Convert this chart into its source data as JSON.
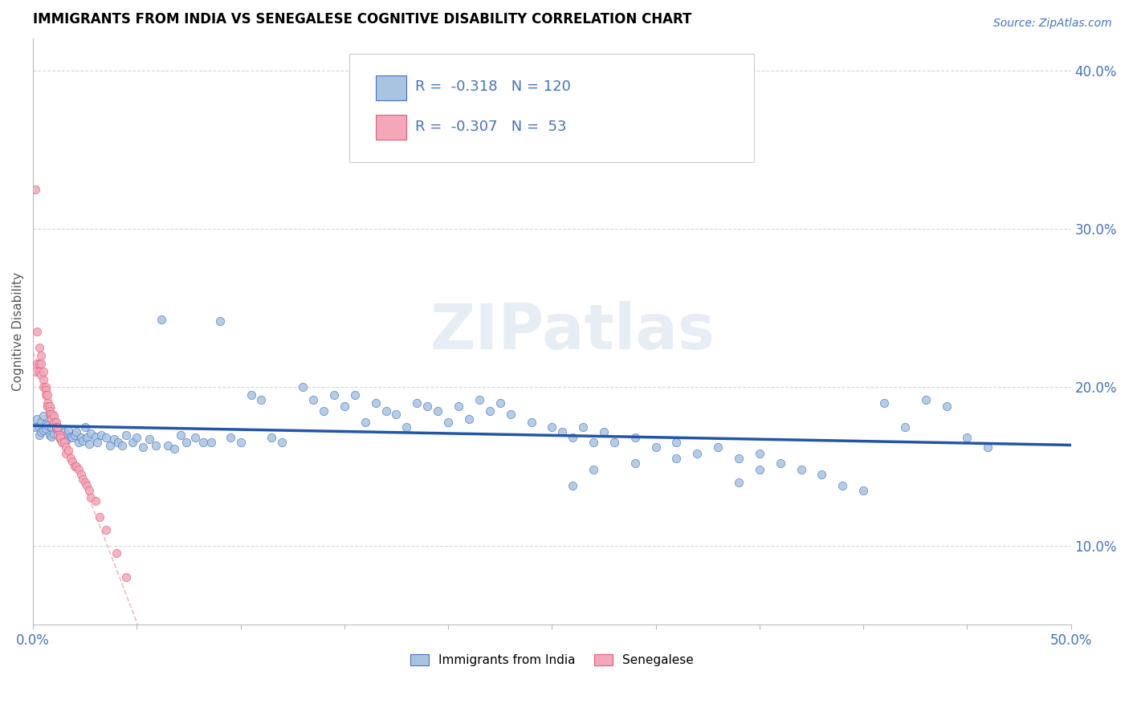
{
  "title": "IMMIGRANTS FROM INDIA VS SENEGALESE COGNITIVE DISABILITY CORRELATION CHART",
  "source": "Source: ZipAtlas.com",
  "ylabel": "Cognitive Disability",
  "xlim": [
    0.0,
    0.5
  ],
  "ylim": [
    0.05,
    0.42
  ],
  "xticks": [
    0.0,
    0.05,
    0.1,
    0.15,
    0.2,
    0.25,
    0.3,
    0.35,
    0.4,
    0.45,
    0.5
  ],
  "ytick_positions": [
    0.1,
    0.2,
    0.3,
    0.4
  ],
  "ytick_labels": [
    "10.0%",
    "20.0%",
    "30.0%",
    "40.0%"
  ],
  "india_color": "#a8c4e0",
  "india_edge_color": "#4472c4",
  "senegal_color": "#f4a7b9",
  "senegal_edge_color": "#e05c7a",
  "trend_india_color": "#2255aa",
  "trend_senegal_color": "#e8a0b0",
  "R_india": -0.318,
  "N_india": 120,
  "R_senegal": -0.307,
  "N_senegal": 53,
  "watermark": "ZIPatlas",
  "india_x": [
    0.001,
    0.002,
    0.003,
    0.003,
    0.004,
    0.004,
    0.005,
    0.005,
    0.006,
    0.006,
    0.007,
    0.007,
    0.008,
    0.008,
    0.009,
    0.009,
    0.01,
    0.01,
    0.011,
    0.012,
    0.013,
    0.013,
    0.014,
    0.015,
    0.016,
    0.016,
    0.017,
    0.018,
    0.019,
    0.02,
    0.021,
    0.022,
    0.023,
    0.024,
    0.025,
    0.026,
    0.027,
    0.028,
    0.03,
    0.031,
    0.033,
    0.035,
    0.037,
    0.039,
    0.041,
    0.043,
    0.045,
    0.048,
    0.05,
    0.053,
    0.056,
    0.059,
    0.062,
    0.065,
    0.068,
    0.071,
    0.074,
    0.078,
    0.082,
    0.086,
    0.09,
    0.095,
    0.1,
    0.105,
    0.11,
    0.115,
    0.12,
    0.13,
    0.135,
    0.14,
    0.145,
    0.15,
    0.155,
    0.16,
    0.165,
    0.17,
    0.175,
    0.18,
    0.185,
    0.19,
    0.195,
    0.2,
    0.205,
    0.21,
    0.215,
    0.22,
    0.225,
    0.23,
    0.24,
    0.25,
    0.255,
    0.26,
    0.265,
    0.27,
    0.275,
    0.28,
    0.29,
    0.3,
    0.31,
    0.32,
    0.33,
    0.34,
    0.35,
    0.36,
    0.37,
    0.38,
    0.39,
    0.4,
    0.41,
    0.42,
    0.43,
    0.44,
    0.45,
    0.46,
    0.26,
    0.34,
    0.35,
    0.27,
    0.29,
    0.31
  ],
  "india_y": [
    0.175,
    0.18,
    0.175,
    0.17,
    0.178,
    0.172,
    0.182,
    0.173,
    0.177,
    0.174,
    0.188,
    0.176,
    0.17,
    0.183,
    0.175,
    0.169,
    0.171,
    0.178,
    0.174,
    0.173,
    0.17,
    0.167,
    0.168,
    0.172,
    0.17,
    0.166,
    0.173,
    0.169,
    0.168,
    0.17,
    0.172,
    0.165,
    0.168,
    0.166,
    0.175,
    0.168,
    0.164,
    0.171,
    0.169,
    0.165,
    0.17,
    0.168,
    0.163,
    0.167,
    0.165,
    0.163,
    0.17,
    0.165,
    0.168,
    0.162,
    0.167,
    0.163,
    0.243,
    0.163,
    0.161,
    0.17,
    0.165,
    0.168,
    0.165,
    0.165,
    0.242,
    0.168,
    0.165,
    0.195,
    0.192,
    0.168,
    0.165,
    0.2,
    0.192,
    0.185,
    0.195,
    0.188,
    0.195,
    0.178,
    0.19,
    0.185,
    0.183,
    0.175,
    0.19,
    0.188,
    0.185,
    0.178,
    0.188,
    0.18,
    0.192,
    0.185,
    0.19,
    0.183,
    0.178,
    0.175,
    0.172,
    0.168,
    0.175,
    0.165,
    0.172,
    0.165,
    0.168,
    0.162,
    0.165,
    0.158,
    0.162,
    0.155,
    0.158,
    0.152,
    0.148,
    0.145,
    0.138,
    0.135,
    0.19,
    0.175,
    0.192,
    0.188,
    0.168,
    0.162,
    0.138,
    0.14,
    0.148,
    0.148,
    0.152,
    0.155
  ],
  "senegal_x": [
    0.001,
    0.001,
    0.002,
    0.002,
    0.003,
    0.003,
    0.003,
    0.004,
    0.004,
    0.004,
    0.005,
    0.005,
    0.005,
    0.006,
    0.006,
    0.006,
    0.007,
    0.007,
    0.007,
    0.008,
    0.008,
    0.008,
    0.009,
    0.009,
    0.01,
    0.01,
    0.011,
    0.011,
    0.012,
    0.012,
    0.013,
    0.013,
    0.014,
    0.015,
    0.016,
    0.016,
    0.017,
    0.018,
    0.019,
    0.02,
    0.021,
    0.022,
    0.023,
    0.024,
    0.025,
    0.026,
    0.027,
    0.028,
    0.03,
    0.032,
    0.035,
    0.04,
    0.045
  ],
  "senegal_y": [
    0.325,
    0.21,
    0.235,
    0.215,
    0.225,
    0.215,
    0.21,
    0.22,
    0.215,
    0.208,
    0.205,
    0.21,
    0.2,
    0.2,
    0.198,
    0.195,
    0.195,
    0.19,
    0.188,
    0.188,
    0.185,
    0.183,
    0.183,
    0.18,
    0.182,
    0.178,
    0.178,
    0.175,
    0.175,
    0.17,
    0.17,
    0.168,
    0.165,
    0.165,
    0.162,
    0.158,
    0.16,
    0.155,
    0.153,
    0.15,
    0.15,
    0.148,
    0.145,
    0.142,
    0.14,
    0.138,
    0.135,
    0.13,
    0.128,
    0.118,
    0.11,
    0.095,
    0.08
  ]
}
